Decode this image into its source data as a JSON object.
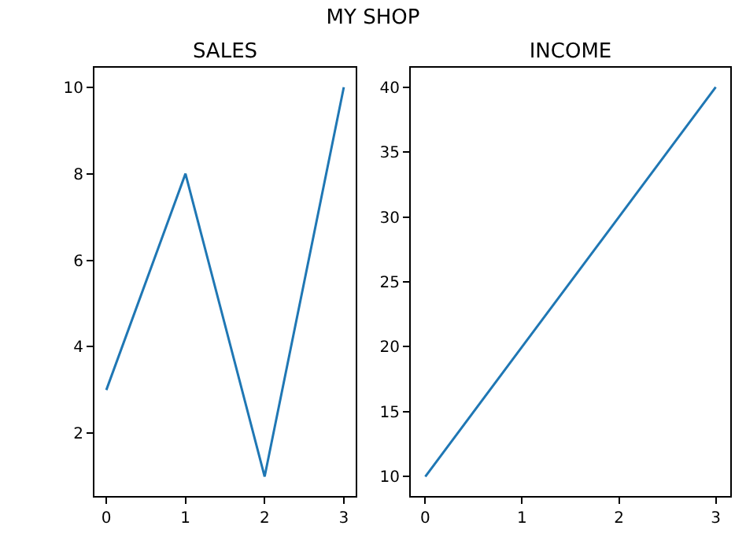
{
  "chart_data": [
    {
      "type": "line",
      "title": "SALES",
      "annotations": [
        "MY SHOP"
      ],
      "x": [
        0,
        1,
        2,
        3
      ],
      "series": [
        {
          "color": "#1f77b4",
          "values": [
            3,
            8,
            1,
            10
          ]
        }
      ],
      "xlim": [
        -0.15,
        3.15
      ],
      "xticks": [
        0,
        1,
        2,
        3
      ],
      "ylim": [
        0.55,
        10.45
      ],
      "yticks": [
        2,
        4,
        6,
        8,
        10
      ],
      "grid": false,
      "legend": false
    },
    {
      "type": "line",
      "title": "INCOME",
      "x": [
        0,
        1,
        2,
        3
      ],
      "series": [
        {
          "color": "#1f77b4",
          "values": [
            10,
            20,
            30,
            40
          ]
        }
      ],
      "xlim": [
        -0.15,
        3.15
      ],
      "xticks": [
        0,
        1,
        2,
        3
      ],
      "ylim": [
        8.5,
        41.5
      ],
      "yticks": [
        10,
        15,
        20,
        25,
        30,
        35,
        40
      ],
      "grid": false,
      "legend": false
    }
  ]
}
